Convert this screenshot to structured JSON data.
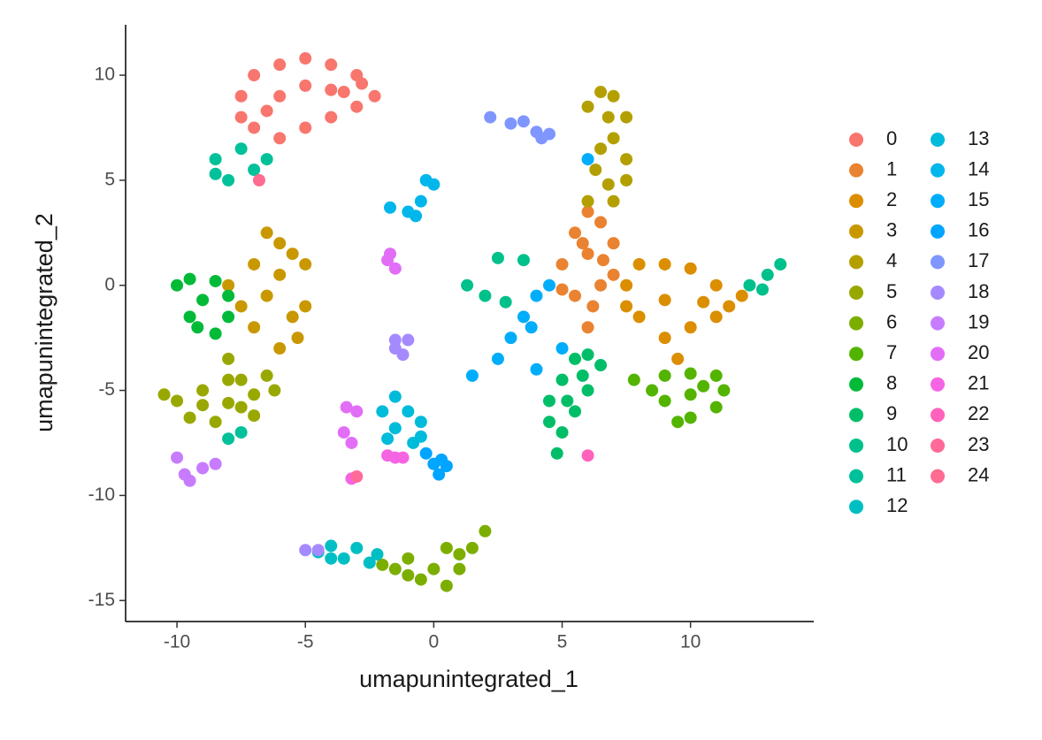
{
  "chart_data": {
    "type": "scatter",
    "x_label": "umapunintegrated_1",
    "y_label": "umapunintegrated_2",
    "xlim": [
      -12,
      14.8
    ],
    "ylim": [
      -16,
      12.4
    ],
    "xticks": [
      -10,
      -5,
      0,
      5,
      10
    ],
    "yticks": [
      -15,
      -10,
      -5,
      0,
      5,
      10
    ],
    "grid": false,
    "legend": "right",
    "series": [
      {
        "name": "0",
        "color": "#F8766D",
        "x": [
          -7.5,
          -7,
          -6,
          -5,
          -4,
          -3,
          -2.3,
          -3,
          -4,
          -5,
          -6,
          -7,
          -6,
          -5,
          -4,
          -7.5,
          -6.5,
          -3.5,
          -2.8
        ],
        "y": [
          9,
          10,
          10.5,
          10.8,
          10.5,
          10,
          9,
          8.5,
          8,
          7.5,
          7,
          7.5,
          9,
          9.5,
          9.3,
          8,
          8.3,
          9.2,
          9.6
        ]
      },
      {
        "name": "1",
        "color": "#EA8331",
        "x": [
          5,
          5.5,
          6,
          6.5,
          7,
          6.5,
          6.2,
          6,
          5.5,
          5,
          6,
          7,
          5.8,
          6.6
        ],
        "y": [
          1,
          2.5,
          3.5,
          3,
          2,
          0,
          -1,
          -2,
          -0.5,
          -0.2,
          1.5,
          0.5,
          2,
          1.2
        ]
      },
      {
        "name": "2",
        "color": "#DB8E00",
        "x": [
          7.5,
          8,
          9,
          10,
          11,
          12,
          11,
          10,
          9,
          9.5,
          8,
          7.5,
          9,
          10.5,
          11.5
        ],
        "y": [
          0,
          1,
          1,
          0.8,
          0,
          -0.5,
          -1.5,
          -2,
          -2.5,
          -3.5,
          -1.5,
          -1,
          -0.7,
          -0.8,
          -1
        ]
      },
      {
        "name": "3",
        "color": "#C99800",
        "x": [
          -8,
          -7,
          -6,
          -5.5,
          -5,
          -5,
          -5.3,
          -6,
          -7,
          -6.5,
          -6.5,
          -7.5,
          -6,
          -5.5
        ],
        "y": [
          0,
          1,
          2,
          1.5,
          1,
          -1,
          -2.5,
          -3,
          -2,
          -0.5,
          2.5,
          -1,
          0.5,
          -1.5
        ]
      },
      {
        "name": "4",
        "color": "#B3A000",
        "x": [
          6,
          6.5,
          7,
          7.5,
          7,
          7.5,
          7.5,
          7,
          6,
          6.3,
          6.5,
          6.8,
          6.8
        ],
        "y": [
          8.5,
          9.2,
          9,
          8,
          7,
          6,
          5,
          4,
          4,
          5.5,
          6.5,
          8,
          4.8
        ]
      },
      {
        "name": "5",
        "color": "#99A800",
        "x": [
          -10.5,
          -10,
          -9,
          -8,
          -7,
          -6.2,
          -6.5,
          -7.5,
          -8,
          -9.5,
          -8.5,
          -7,
          -8,
          -9,
          -7.5
        ],
        "y": [
          -5.2,
          -5.5,
          -5.7,
          -5.6,
          -5.2,
          -5,
          -4.3,
          -4.5,
          -4.5,
          -6.3,
          -6.5,
          -6.2,
          -3.5,
          -5,
          -5.8
        ]
      },
      {
        "name": "6",
        "color": "#7CAE00",
        "x": [
          -2,
          -1,
          -0.5,
          0.5,
          1,
          1.5,
          2,
          0.5,
          -1,
          0,
          -1.5,
          1
        ],
        "y": [
          -13.3,
          -13,
          -14,
          -14.3,
          -13.5,
          -12.5,
          -11.7,
          -12.5,
          -13.8,
          -13.5,
          -13.5,
          -12.8
        ]
      },
      {
        "name": "7",
        "color": "#53B400",
        "x": [
          8.5,
          9,
          10,
          11,
          11.3,
          11,
          10,
          9.5,
          9,
          10,
          7.8,
          10.5
        ],
        "y": [
          -5,
          -4.3,
          -4.2,
          -4.3,
          -5,
          -5.8,
          -6.3,
          -6.5,
          -5.5,
          -5.2,
          -4.5,
          -4.8
        ]
      },
      {
        "name": "8",
        "color": "#00BA38",
        "x": [
          -10,
          -9.5,
          -8.5,
          -8,
          -8,
          -8.5,
          -9.5,
          -9,
          -9.2
        ],
        "y": [
          0,
          0.3,
          0.2,
          -0.5,
          -1.5,
          -2.3,
          -1.5,
          -0.7,
          -2
        ]
      },
      {
        "name": "9",
        "color": "#00BE67",
        "x": [
          4.5,
          4.5,
          5,
          5.5,
          6,
          6.5,
          6,
          5.5,
          5,
          4.8,
          5.2,
          5.8
        ],
        "y": [
          -6.5,
          -5.5,
          -4.5,
          -3.5,
          -3.3,
          -3.8,
          -5,
          -6,
          -7,
          -8,
          -5.5,
          -4.3
        ]
      },
      {
        "name": "10",
        "color": "#00C08B",
        "x": [
          1.3,
          2,
          2.8,
          2.5,
          3.5,
          12.3,
          13,
          13.5,
          12.8
        ],
        "y": [
          0,
          -0.5,
          -0.8,
          1.3,
          1.2,
          0,
          0.5,
          1,
          -0.2
        ]
      },
      {
        "name": "11",
        "color": "#00C19A",
        "x": [
          -8.5,
          -8,
          -7.5,
          -7,
          -8.5,
          -6.5,
          -8,
          -7.5
        ],
        "y": [
          6,
          5,
          6.5,
          5.5,
          5.3,
          6,
          -7.3,
          -7
        ]
      },
      {
        "name": "12",
        "color": "#00BFC4",
        "x": [
          -4.5,
          -4,
          -3,
          -2.2,
          -2.5,
          -3.5,
          -4
        ],
        "y": [
          -12.7,
          -12.4,
          -12.5,
          -12.8,
          -13.2,
          -13,
          -13
        ]
      },
      {
        "name": "13",
        "color": "#00BBDA",
        "x": [
          -2,
          -1.5,
          -1,
          -0.5,
          -1.5,
          -0.8,
          -0.5,
          -1.8
        ],
        "y": [
          -6,
          -5.3,
          -6,
          -6.5,
          -6.8,
          -7.5,
          -7.2,
          -7.3
        ]
      },
      {
        "name": "14",
        "color": "#00B6EB",
        "x": [
          -1.7,
          -1,
          -0.5,
          0,
          -0.3,
          -0.7
        ],
        "y": [
          3.7,
          3.5,
          4,
          4.8,
          5,
          3.3
        ]
      },
      {
        "name": "15",
        "color": "#00ADFA",
        "x": [
          1.5,
          2.5,
          3,
          3.5,
          4,
          4.5,
          3.8,
          4,
          5,
          6
        ],
        "y": [
          -4.3,
          -3.5,
          -2.5,
          -1.5,
          -0.5,
          0,
          -2,
          -4,
          -3,
          6
        ]
      },
      {
        "name": "16",
        "color": "#00A5FF",
        "x": [
          0,
          0.3,
          0.5,
          0.2,
          -0.3
        ],
        "y": [
          -8.5,
          -8.3,
          -8.6,
          -9,
          -8
        ]
      },
      {
        "name": "17",
        "color": "#7F96FF",
        "x": [
          2.2,
          3,
          4,
          4.5,
          3.5,
          4.2
        ],
        "y": [
          8,
          7.7,
          7.3,
          7.2,
          7.8,
          7
        ]
      },
      {
        "name": "18",
        "color": "#A58AFF",
        "x": [
          -1.5,
          -1,
          -1.2,
          -1.5,
          -5,
          -4.5
        ],
        "y": [
          -2.6,
          -2.6,
          -3.3,
          -3,
          -12.6,
          -12.6
        ]
      },
      {
        "name": "19",
        "color": "#C77CFF",
        "x": [
          -10,
          -9.7,
          -9.5,
          -9,
          -8.5
        ],
        "y": [
          -8.2,
          -9,
          -9.3,
          -8.7,
          -8.5
        ]
      },
      {
        "name": "20",
        "color": "#E26EF7",
        "x": [
          -1.7,
          -1.5,
          -1.8,
          -3.4,
          -3,
          -3.5,
          -3.2
        ],
        "y": [
          1.5,
          0.8,
          1.2,
          -5.8,
          -6,
          -7,
          -7.5
        ]
      },
      {
        "name": "21",
        "color": "#F564E3",
        "x": [
          -1.8,
          -1.5,
          -1.2,
          -3.2
        ],
        "y": [
          -8.1,
          -8.2,
          -8.2,
          -9.2
        ]
      },
      {
        "name": "22",
        "color": "#FF62BC",
        "x": [
          6
        ],
        "y": [
          -8.1
        ]
      },
      {
        "name": "23",
        "color": "#FF6A98",
        "x": [
          -3
        ],
        "y": [
          -9.1
        ]
      },
      {
        "name": "24",
        "color": "#FF6C91",
        "x": [
          -6.8
        ],
        "y": [
          5
        ]
      }
    ]
  }
}
